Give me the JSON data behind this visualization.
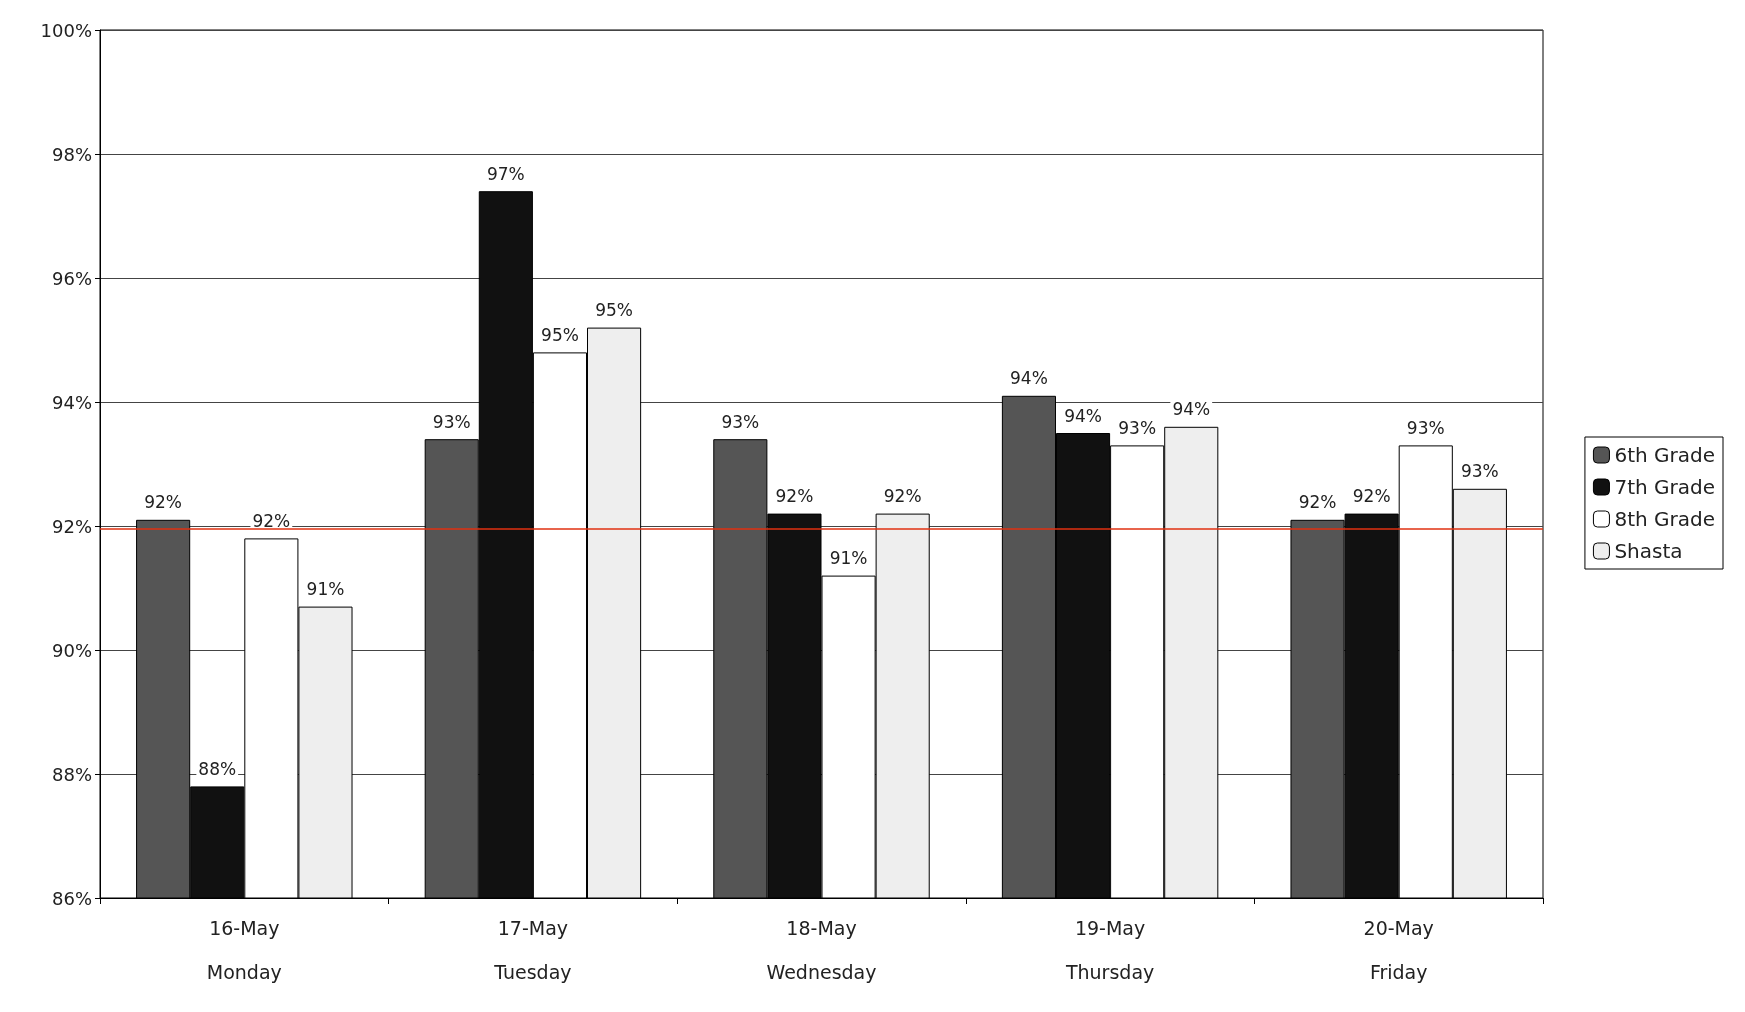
{
  "chart_data": {
    "type": "bar",
    "categories": [
      "16-May\nMonday",
      "17-May\nTuesday",
      "18-May\nWednesday",
      "19-May\nThursday",
      "20-May\nFriday"
    ],
    "series": [
      {
        "name": "6th Grade",
        "color": "#555555",
        "values": [
          92.1,
          93.4,
          93.4,
          94.1,
          92.1
        ],
        "value_labels": [
          "92%",
          "93%",
          "93%",
          "94%",
          "92%"
        ]
      },
      {
        "name": "7th Grade",
        "color": "#111111",
        "values": [
          87.8,
          97.4,
          92.2,
          93.5,
          92.2
        ],
        "value_labels": [
          "88%",
          "97%",
          "92%",
          "94%",
          "92%"
        ]
      },
      {
        "name": "8th Grade",
        "color": "#ffffff",
        "values": [
          91.8,
          94.8,
          91.2,
          93.3,
          93.3
        ],
        "value_labels": [
          "92%",
          "95%",
          "91%",
          "93%",
          "93%"
        ]
      },
      {
        "name": "Shasta",
        "color": "#eeeeee",
        "values": [
          90.7,
          95.2,
          92.2,
          93.6,
          92.6
        ],
        "value_labels": [
          "91%",
          "95%",
          "92%",
          "94%",
          "93%"
        ]
      }
    ],
    "ylim": [
      86,
      100
    ],
    "yticks": [
      {
        "value": 86,
        "label": "86%"
      },
      {
        "value": 88,
        "label": "88%"
      },
      {
        "value": 90,
        "label": "90%"
      },
      {
        "value": 92,
        "label": "92%"
      },
      {
        "value": 94,
        "label": "94%"
      },
      {
        "value": 96,
        "label": "96%"
      },
      {
        "value": 98,
        "label": "98%"
      },
      {
        "value": 100,
        "label": "100%"
      }
    ],
    "grid": "y",
    "legend": "right",
    "ref_lines": [
      {
        "axis": "y",
        "value": 91.95,
        "color": "#e03010"
      }
    ]
  }
}
